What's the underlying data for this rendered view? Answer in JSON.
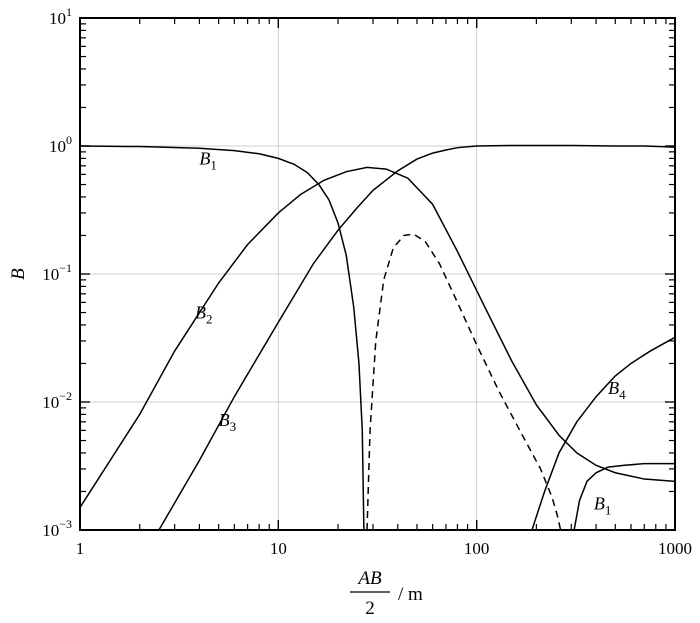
{
  "chart_data": {
    "type": "line",
    "title": "",
    "xlabel": {
      "numerator": "AB",
      "denominator": "2",
      "unit": "m"
    },
    "ylabel": "B",
    "x_scale": "log",
    "y_scale": "log",
    "xlim": [
      1,
      1000
    ],
    "ylim": [
      0.001,
      10
    ],
    "grid": true,
    "x_ticks": [
      "1",
      "10",
      "100",
      "1000"
    ],
    "y_ticks": [
      {
        "value": 0.001,
        "base": "10",
        "exp": "−3"
      },
      {
        "value": 0.01,
        "base": "10",
        "exp": "−2"
      },
      {
        "value": 0.1,
        "base": "10",
        "exp": "−1"
      },
      {
        "value": 1,
        "base": "10",
        "exp": "0"
      },
      {
        "value": 10,
        "base": "10",
        "exp": "1"
      }
    ],
    "series": [
      {
        "name": "B",
        "sub": "1",
        "style": "solid",
        "x": [
          1,
          2,
          4,
          6,
          8,
          10,
          12,
          14,
          16,
          18,
          20,
          22,
          24,
          25.5,
          26.5,
          27
        ],
        "y": [
          1.0,
          0.99,
          0.96,
          0.92,
          0.87,
          0.8,
          0.72,
          0.62,
          0.5,
          0.38,
          0.25,
          0.14,
          0.055,
          0.02,
          0.006,
          0.001
        ]
      },
      {
        "name": "B",
        "sub": "2",
        "style": "solid",
        "x": [
          1,
          2,
          3,
          5,
          7,
          10,
          13,
          17,
          22,
          28,
          35,
          45,
          60,
          80,
          110,
          150,
          200,
          260,
          320,
          400,
          500,
          700,
          1000
        ],
        "y": [
          0.0015,
          0.008,
          0.025,
          0.085,
          0.17,
          0.3,
          0.42,
          0.54,
          0.63,
          0.68,
          0.66,
          0.56,
          0.35,
          0.15,
          0.055,
          0.021,
          0.0095,
          0.0055,
          0.004,
          0.0032,
          0.0028,
          0.0025,
          0.0024
        ]
      },
      {
        "name": "B",
        "sub": "3",
        "style": "solid",
        "x": [
          2.5,
          4,
          6,
          10,
          15,
          20,
          25,
          30,
          40,
          50,
          60,
          70,
          80,
          100,
          150,
          200,
          300,
          500,
          700,
          1000
        ],
        "y": [
          0.001,
          0.0035,
          0.011,
          0.042,
          0.12,
          0.22,
          0.33,
          0.45,
          0.64,
          0.79,
          0.88,
          0.93,
          0.97,
          1.0,
          1.01,
          1.01,
          1.01,
          1.0,
          1.0,
          0.98
        ]
      },
      {
        "name": "",
        "sub": "",
        "style": "dashed",
        "x": [
          28,
          29,
          31,
          34,
          38,
          43,
          48,
          55,
          65,
          80,
          100,
          130,
          170,
          210,
          240,
          255,
          265
        ],
        "y": [
          0.001,
          0.006,
          0.03,
          0.09,
          0.16,
          0.2,
          0.205,
          0.18,
          0.12,
          0.06,
          0.028,
          0.012,
          0.0055,
          0.003,
          0.0018,
          0.0013,
          0.001
        ]
      },
      {
        "name": "B",
        "sub": "4",
        "style": "solid",
        "x": [
          190,
          220,
          260,
          320,
          400,
          500,
          600,
          750,
          1000
        ],
        "y": [
          0.001,
          0.002,
          0.004,
          0.007,
          0.011,
          0.016,
          0.02,
          0.025,
          0.032
        ]
      },
      {
        "name": "B",
        "sub": "1",
        "style": "solid",
        "x": [
          310,
          330,
          360,
          400,
          460,
          550,
          700,
          850,
          1000
        ],
        "y": [
          0.001,
          0.0017,
          0.0024,
          0.0028,
          0.0031,
          0.0032,
          0.0033,
          0.0033,
          0.0033
        ]
      }
    ],
    "annotations": [
      {
        "name": "B",
        "sub": "1",
        "x": 4.0,
        "y": 0.72
      },
      {
        "name": "B",
        "sub": "2",
        "x": 3.8,
        "y": 0.045
      },
      {
        "name": "B",
        "sub": "3",
        "x": 5.0,
        "y": 0.0065
      },
      {
        "name": "B",
        "sub": "4",
        "x": 460,
        "y": 0.0115
      },
      {
        "name": "B",
        "sub": "1",
        "x": 390,
        "y": 0.00145
      }
    ]
  }
}
